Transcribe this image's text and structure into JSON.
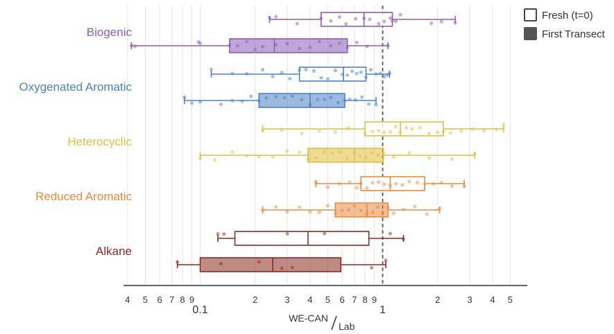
{
  "chart_data": {
    "type": "box",
    "x_scale": "log",
    "xlim": [
      0.038,
      6.2
    ],
    "xlabel": {
      "numerator": "WE-CAN",
      "denominator": "Lab"
    },
    "x_ticks": [
      {
        "value": 0.04,
        "label": "4"
      },
      {
        "value": 0.05,
        "label": "5"
      },
      {
        "value": 0.06,
        "label": "6"
      },
      {
        "value": 0.07,
        "label": "7"
      },
      {
        "value": 0.08,
        "label": "8"
      },
      {
        "value": 0.09,
        "label": "9"
      },
      {
        "value": 0.1,
        "label": "0.1",
        "major": true
      },
      {
        "value": 0.2,
        "label": "2"
      },
      {
        "value": 0.3,
        "label": "3"
      },
      {
        "value": 0.4,
        "label": "4"
      },
      {
        "value": 0.5,
        "label": "5"
      },
      {
        "value": 0.6,
        "label": "6"
      },
      {
        "value": 0.7,
        "label": "7"
      },
      {
        "value": 0.8,
        "label": "8"
      },
      {
        "value": 0.9,
        "label": "9"
      },
      {
        "value": 1,
        "label": "1",
        "major": true
      },
      {
        "value": 2,
        "label": "2"
      },
      {
        "value": 3,
        "label": "3"
      },
      {
        "value": 4,
        "label": "4"
      },
      {
        "value": 5,
        "label": "5"
      }
    ],
    "reference_line": 1.0,
    "grid": "vertical",
    "legend": {
      "position": "top-right",
      "entries": [
        {
          "name": "Fresh (t=0)",
          "style": "open"
        },
        {
          "name": "First Transect",
          "style": "filled"
        }
      ]
    },
    "categories": [
      {
        "name": "Biogenic",
        "color": "#8b5cb8",
        "fresh": {
          "whisker_low": 0.24,
          "q1": 0.46,
          "median": 0.79,
          "q3": 1.13,
          "whisker_high": 2.5,
          "points": [
            0.24,
            0.26,
            0.34,
            0.46,
            0.52,
            0.58,
            0.63,
            0.71,
            0.79,
            0.85,
            0.95,
            1.02,
            1.1,
            1.13,
            1.18,
            1.25,
            1.85,
            2.1,
            2.5
          ]
        },
        "transect": {
          "whisker_low": 0.042,
          "q1": 0.145,
          "median": 0.255,
          "q3": 0.64,
          "whisker_high": 1.07,
          "points": [
            0.042,
            0.044,
            0.098,
            0.1,
            0.145,
            0.16,
            0.18,
            0.2,
            0.22,
            0.26,
            0.3,
            0.35,
            0.4,
            0.45,
            0.52,
            0.58,
            0.64,
            0.72,
            0.82,
            1.07
          ]
        }
      },
      {
        "name": "Oxygenated Aromatic",
        "color": "#4a82c4",
        "fresh": {
          "whisker_low": 0.115,
          "q1": 0.35,
          "median": 0.61,
          "q3": 0.81,
          "whisker_high": 1.09,
          "points": [
            0.115,
            0.15,
            0.18,
            0.22,
            0.25,
            0.28,
            0.31,
            0.35,
            0.38,
            0.42,
            0.46,
            0.5,
            0.55,
            0.6,
            0.64,
            0.68,
            0.72,
            0.76,
            0.81,
            0.86,
            0.92,
            0.97,
            1.02,
            1.06,
            1.09
          ]
        },
        "transect": {
          "whisker_low": 0.082,
          "q1": 0.21,
          "median": 0.4,
          "q3": 0.62,
          "whisker_high": 0.92,
          "points": [
            0.082,
            0.09,
            0.1,
            0.13,
            0.15,
            0.17,
            0.19,
            0.21,
            0.23,
            0.26,
            0.29,
            0.32,
            0.36,
            0.4,
            0.44,
            0.48,
            0.52,
            0.57,
            0.62,
            0.66,
            0.71,
            0.77,
            0.84,
            0.92
          ]
        }
      },
      {
        "name": "Heterocyclic",
        "color": "#e0bf3e",
        "fresh": {
          "whisker_low": 0.22,
          "q1": 0.8,
          "median": 1.25,
          "q3": 2.15,
          "whisker_high": 4.6,
          "points": [
            0.22,
            0.28,
            0.36,
            0.45,
            0.55,
            0.65,
            0.8,
            0.88,
            0.95,
            1.02,
            1.1,
            1.18,
            1.25,
            1.35,
            1.45,
            1.6,
            1.8,
            2.0,
            2.15,
            2.35,
            2.7,
            3.1,
            3.6,
            4.2,
            4.6
          ]
        },
        "transect": {
          "whisker_low": 0.1,
          "q1": 0.39,
          "median": 0.7,
          "q3": 1.01,
          "whisker_high": 3.2,
          "points": [
            0.1,
            0.12,
            0.15,
            0.18,
            0.21,
            0.25,
            0.3,
            0.35,
            0.39,
            0.43,
            0.48,
            0.53,
            0.58,
            0.64,
            0.7,
            0.75,
            0.81,
            0.87,
            0.94,
            1.01,
            1.15,
            1.4,
            1.8,
            2.4,
            3.2
          ]
        }
      },
      {
        "name": "Reduced Aromatic",
        "color": "#e98b3d",
        "fresh": {
          "whisker_low": 0.43,
          "q1": 0.76,
          "median": 1.1,
          "q3": 1.7,
          "whisker_high": 2.8,
          "points": [
            0.43,
            0.5,
            0.58,
            0.66,
            0.72,
            0.76,
            0.82,
            0.88,
            0.95,
            1.02,
            1.1,
            1.18,
            1.28,
            1.4,
            1.55,
            1.7,
            1.9,
            2.1,
            2.4,
            2.8
          ]
        },
        "transect": {
          "whisker_low": 0.22,
          "q1": 0.55,
          "median": 0.82,
          "q3": 1.07,
          "whisker_high": 2.05,
          "points": [
            0.22,
            0.26,
            0.3,
            0.35,
            0.4,
            0.45,
            0.5,
            0.55,
            0.6,
            0.65,
            0.7,
            0.76,
            0.82,
            0.88,
            0.94,
            1.0,
            1.07,
            1.15,
            1.3,
            1.5,
            1.75,
            2.05
          ]
        }
      },
      {
        "name": "Alkane",
        "color": "#8a2a1e",
        "fresh": {
          "whisker_low": 0.125,
          "q1": 0.155,
          "median": 0.39,
          "q3": 0.84,
          "whisker_high": 1.3,
          "points": [
            0.125,
            0.135,
            0.3,
            0.48,
            1.1,
            1.3
          ]
        },
        "transect": {
          "whisker_low": 0.075,
          "q1": 0.1,
          "median": 0.25,
          "q3": 0.59,
          "whisker_high": 1.04,
          "points": [
            0.075,
            0.13,
            0.21,
            0.28,
            0.32,
            0.87,
            1.04
          ]
        }
      }
    ]
  }
}
